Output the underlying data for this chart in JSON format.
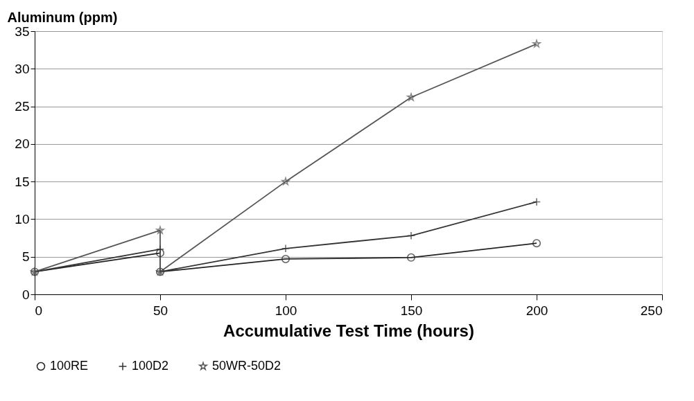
{
  "chart_data": {
    "type": "line",
    "ylabel": "Aluminum (ppm)",
    "xlabel": "Accumulative Test Time (hours)",
    "xlim": [
      0,
      250
    ],
    "xticks": [
      0,
      50,
      100,
      150,
      200,
      250
    ],
    "ylim": [
      0,
      35
    ],
    "yticks": [
      0,
      5,
      10,
      15,
      20,
      25,
      30,
      35
    ],
    "grid": "y",
    "legend": "bottom",
    "line_style": "solid",
    "series": [
      {
        "name": "100RE",
        "color": "#222222",
        "marker": "circle",
        "x": [
          0,
          50,
          50,
          100,
          150,
          200
        ],
        "values": [
          3,
          5.5,
          3,
          4.7,
          4.9,
          6.8
        ]
      },
      {
        "name": "100D2",
        "color": "#333333",
        "marker": "cross",
        "x": [
          0,
          50,
          50,
          100,
          150,
          200
        ],
        "values": [
          3,
          6,
          3,
          6.1,
          7.8,
          12.3
        ]
      },
      {
        "name": "50WR-50D2",
        "color": "#555555",
        "marker": "star",
        "x": [
          0,
          50,
          50,
          100,
          150,
          200
        ],
        "values": [
          3,
          8.5,
          3,
          15,
          26.2,
          33.3
        ]
      }
    ]
  }
}
